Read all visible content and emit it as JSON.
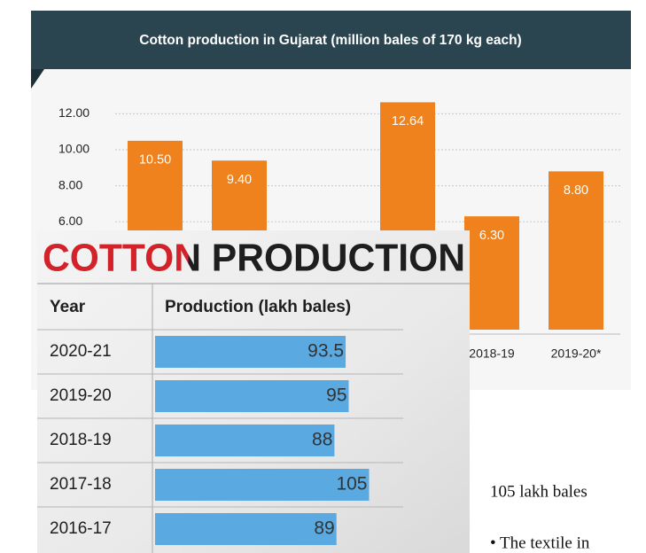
{
  "chart_data": [
    {
      "type": "bar",
      "title": "Cotton production in Gujarat (million bales of 170 kg each)",
      "categories": [
        null,
        null,
        null,
        null,
        "2018-19",
        "2019-20*"
      ],
      "values": [
        10.5,
        9.4,
        null,
        12.64,
        6.3,
        8.8
      ],
      "value_labels": [
        "10.50",
        "9.40",
        null,
        "12.64",
        "6.30",
        "8.80"
      ],
      "color": "#f0821e",
      "ylim": [
        0,
        14
      ],
      "yticks": [
        {
          "value": 12,
          "label": "12.00"
        },
        {
          "value": 10,
          "label": "10.00"
        },
        {
          "value": 8,
          "label": "8.00"
        },
        {
          "value": 6,
          "label": "6.00"
        }
      ],
      "grid": true
    },
    {
      "type": "barh",
      "title": "COTTON PRODUCTION",
      "columns": [
        "Year",
        "Production (lakh bales)"
      ],
      "categories": [
        "2020-21",
        "2019-20",
        "2018-19",
        "2017-18",
        "2016-17"
      ],
      "values": [
        93.5,
        95,
        88,
        105,
        89
      ],
      "color": "#5aa9e0",
      "xlim": [
        0,
        120
      ]
    }
  ],
  "notes": [
    "105 lakh bales",
    "• The textile in"
  ]
}
